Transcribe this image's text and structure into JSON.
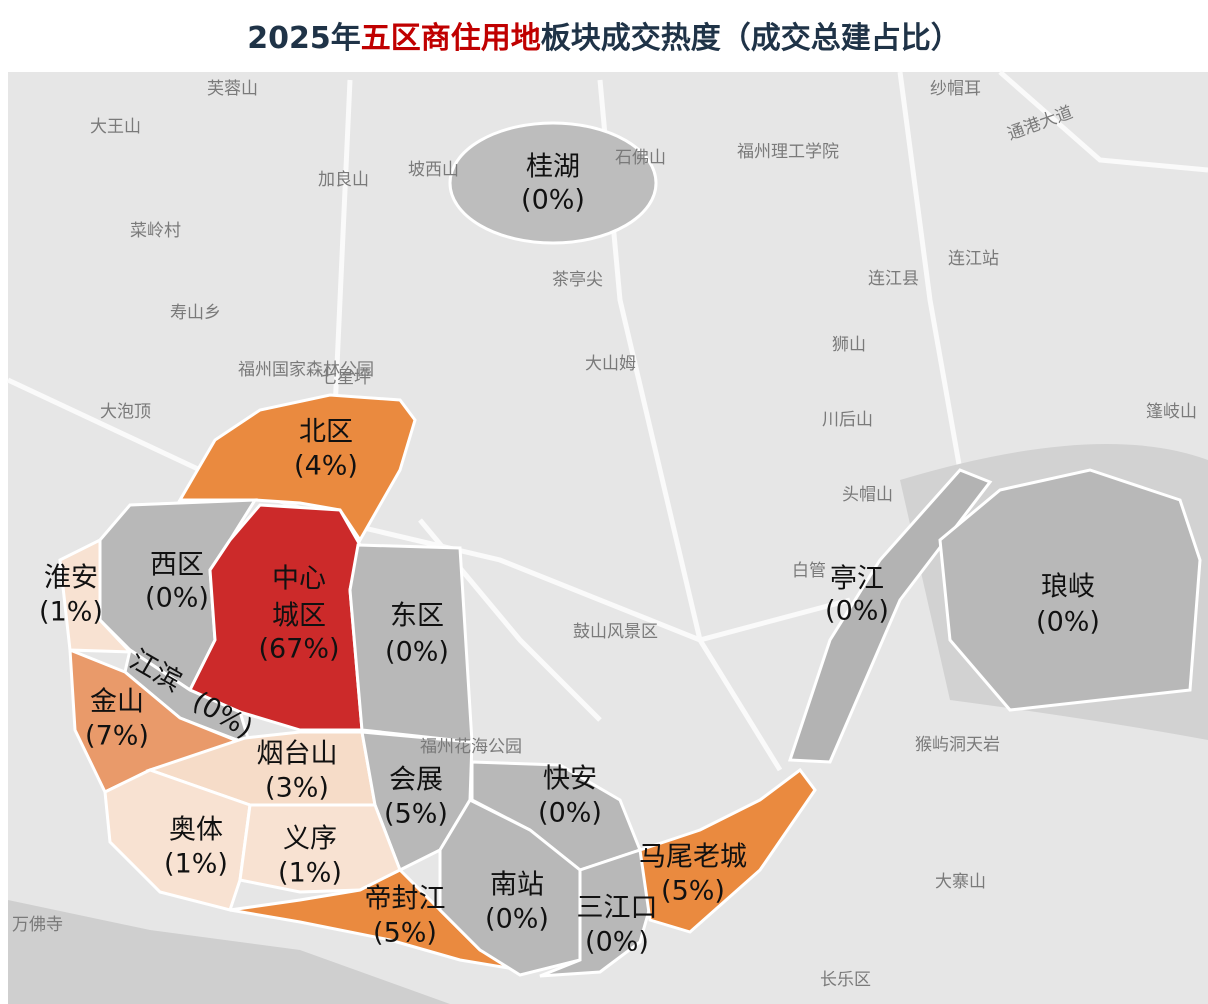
{
  "title": {
    "part1": "2025年",
    "highlight": "五区商住用地",
    "part2": "板块成交热度（成交总建占比）"
  },
  "regions": [
    {
      "name": "桂湖",
      "share": "(0%)"
    },
    {
      "name": "北区",
      "share": "(4%)"
    },
    {
      "name": "西区",
      "share": "(0%)"
    },
    {
      "name": "中心",
      "share": "(67%)",
      "name2": "城区"
    },
    {
      "name": "东区",
      "share": "(0%)"
    },
    {
      "name": "淮安",
      "share": "(1%)"
    },
    {
      "name": "江滨",
      "share": "(0%)"
    },
    {
      "name": "金山",
      "share": "(7%)"
    },
    {
      "name": "烟台山",
      "share": "(3%)"
    },
    {
      "name": "会展",
      "share": "(5%)"
    },
    {
      "name": "快安",
      "share": "(0%)"
    },
    {
      "name": "奥体",
      "share": "(1%)"
    },
    {
      "name": "义序",
      "share": "(1%)"
    },
    {
      "name": "帝封江",
      "share": "(5%)"
    },
    {
      "name": "南站",
      "share": "(0%)"
    },
    {
      "name": "三江口",
      "share": "(0%)"
    },
    {
      "name": "马尾老城",
      "share": "(5%)"
    },
    {
      "name": "亭江",
      "share": "(0%)"
    },
    {
      "name": "琅岐",
      "share": "(0%)"
    }
  ],
  "basemap": [
    "芙蓉山",
    "大王山",
    "加良山",
    "坡西山",
    "石佛山",
    "福州理工学院",
    "连江站",
    "连江县",
    "茶亭尖",
    "大山姆",
    "福州国家森林公园",
    "七星坪",
    "大泡顶",
    "狮山",
    "川后山",
    "头帽山",
    "白管",
    "鼓山风景区",
    "福州花海公园",
    "猴屿洞天岩",
    "大寨山",
    "长乐区",
    "万佛寺",
    "篷岐山",
    "菜岭村",
    "寿山乡",
    "纱帽耳",
    "通港大道"
  ]
}
